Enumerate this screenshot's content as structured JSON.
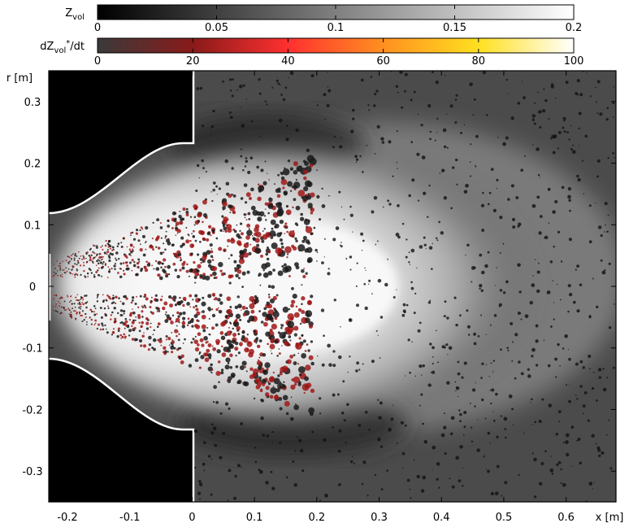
{
  "chart_data": {
    "type": "field",
    "xlabel": "x [m]",
    "ylabel": "r [m]",
    "xlim": [
      -0.23,
      0.68
    ],
    "xticks": [
      -0.2,
      -0.1,
      0,
      0.1,
      0.2,
      0.3,
      0.4,
      0.5,
      0.6
    ],
    "ylim": [
      -0.35,
      0.35
    ],
    "yticks": [
      -0.3,
      -0.2,
      -0.1,
      0,
      0.1,
      0.2,
      0.3
    ],
    "colorbars": [
      {
        "label": [
          {
            "text": "Z"
          },
          {
            "text": "vol",
            "sub": true
          }
        ],
        "lim": [
          0,
          0.2
        ],
        "ticks": [
          0,
          0.05,
          0.1,
          0.15,
          0.2
        ],
        "colors": [
          "#000000",
          "#ffffff"
        ]
      },
      {
        "label": [
          {
            "text": "dZ"
          },
          {
            "text": "vol",
            "sub": true
          },
          {
            "text": "*",
            "sup": true
          },
          {
            "text": "/dt"
          }
        ],
        "lim": [
          0,
          100
        ],
        "ticks": [
          0,
          20,
          40,
          60,
          80,
          100
        ],
        "colors": [
          "#3a3a3a",
          "#8a1a1a",
          "#ff3030",
          "#ff9020",
          "#ffe020",
          "#ffffff"
        ]
      }
    ]
  }
}
